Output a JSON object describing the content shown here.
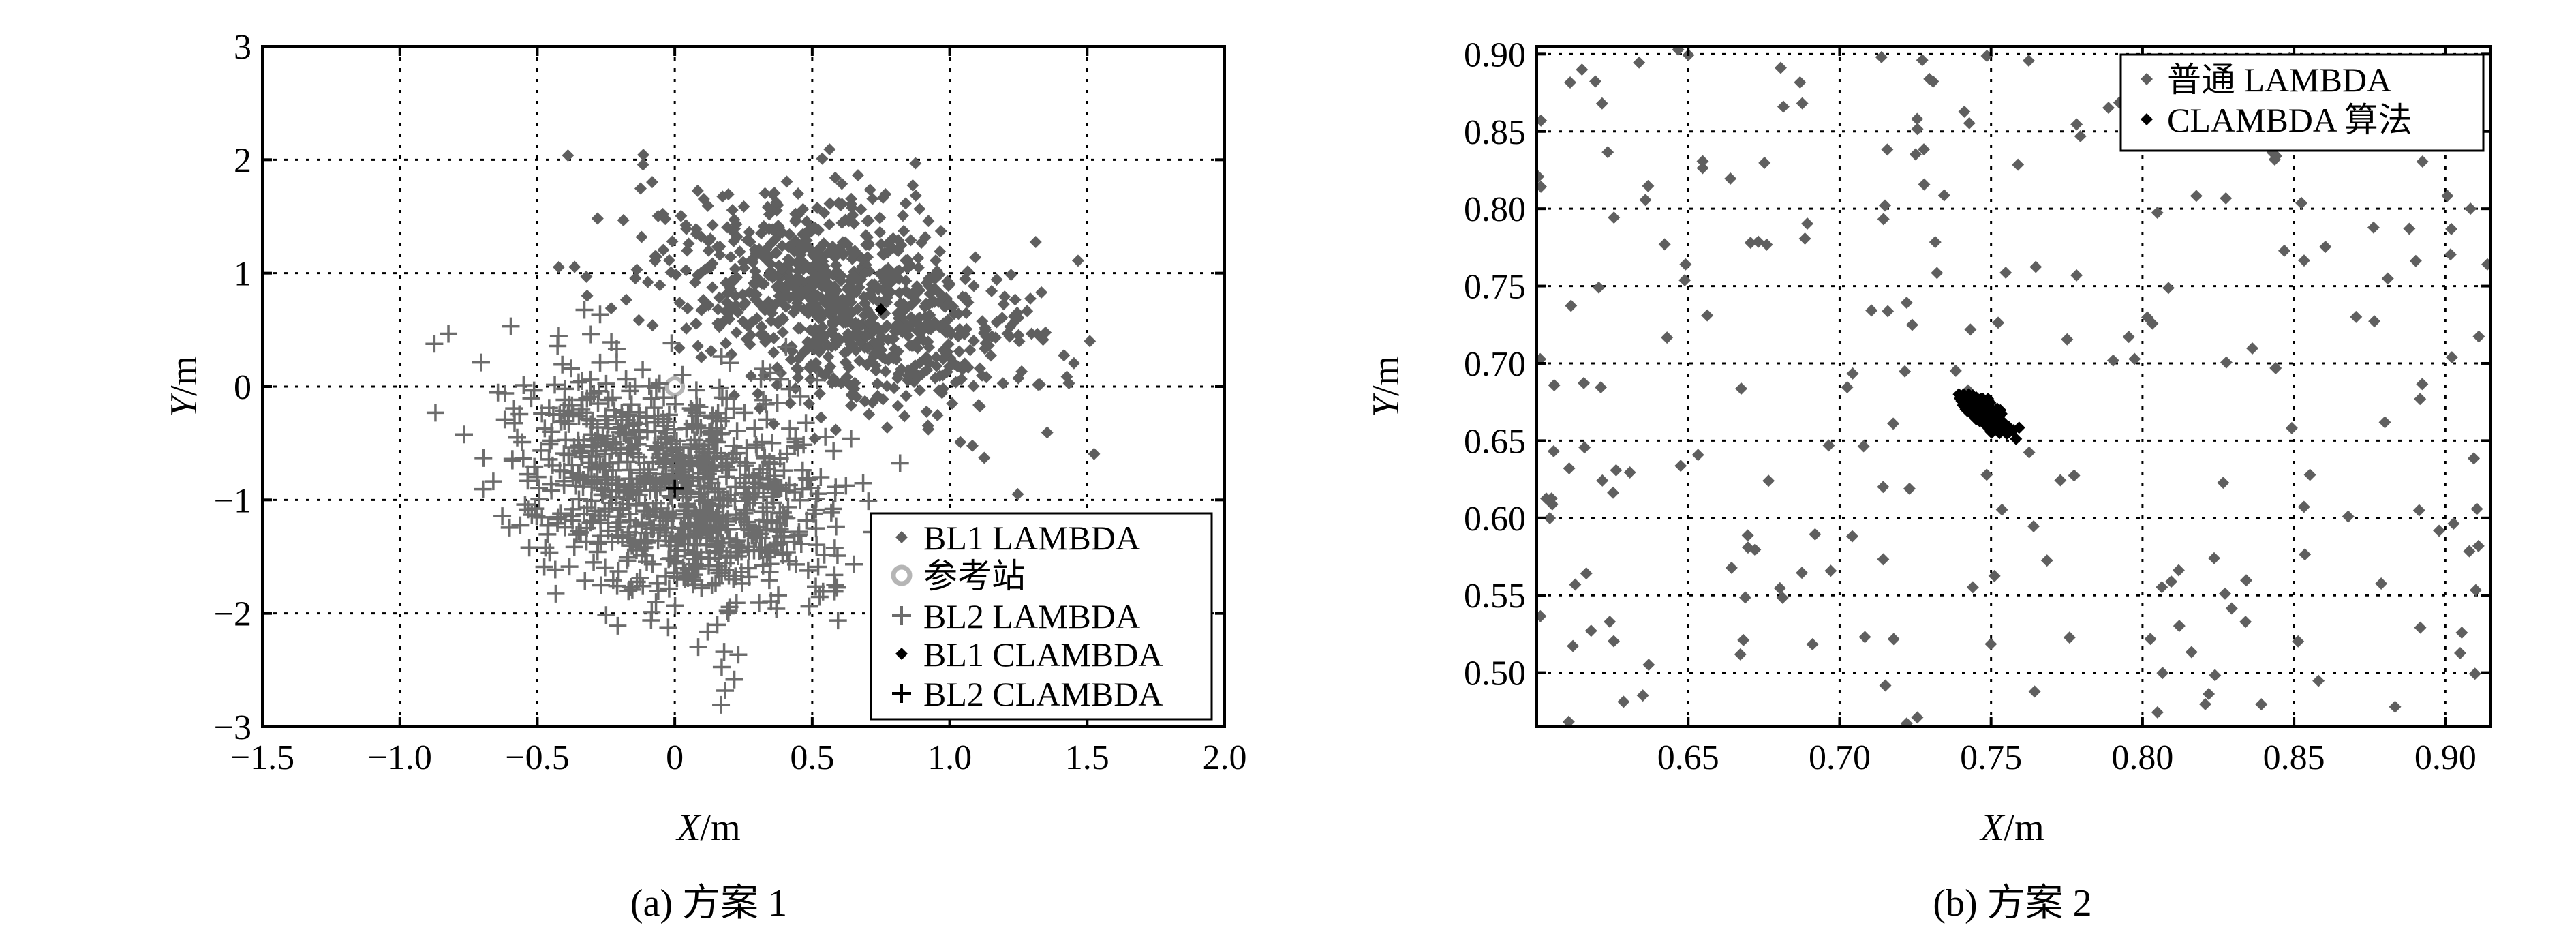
{
  "chart_data": [
    {
      "type": "scatter",
      "caption": "(a) 方案 1",
      "xlabel_var": "X",
      "xlabel_unit": "/m",
      "ylabel_var": "Y",
      "ylabel_unit": "/m",
      "xlim": [
        -1.5,
        2.0
      ],
      "ylim": [
        -3,
        3
      ],
      "xticks": [
        -1.5,
        -1.0,
        -0.5,
        0,
        0.5,
        1.0,
        1.5,
        2.0
      ],
      "xtick_labels": [
        "−1.5",
        "−1.0",
        "−0.5",
        "0",
        "0.5",
        "1.0",
        "1.5",
        "2.0"
      ],
      "yticks": [
        -3,
        -2,
        -1,
        0,
        1,
        2,
        3
      ],
      "ytick_labels": [
        "−3",
        "−2",
        "−1",
        "0",
        "1",
        "2",
        "3"
      ],
      "grid": true,
      "legend_position": "bottom-right",
      "series": [
        {
          "name": "BL1 LAMBDA",
          "marker": "diamond",
          "color": "#5f5f5f",
          "cloud": {
            "center": [
              0.6,
              0.75
            ],
            "sd": [
              0.32,
              0.48
            ],
            "corr": -0.35,
            "n": 900
          }
        },
        {
          "name": "参考站",
          "marker": "circle",
          "color": "#b5b5b5",
          "points": [
            [
              0,
              0
            ]
          ]
        },
        {
          "name": "BL2 LAMBDA",
          "marker": "plus",
          "color": "#6c6c6c",
          "cloud": {
            "center": [
              0.0,
              -0.9
            ],
            "sd": [
              0.3,
              0.55
            ],
            "corr": -0.35,
            "n": 900
          }
        },
        {
          "name": "BL1 CLAMBDA",
          "marker": "diamond",
          "color": "#000000",
          "points": [
            [
              0.75,
              0.68
            ]
          ]
        },
        {
          "name": "BL2 CLAMBDA",
          "marker": "plus",
          "color": "#000000",
          "points": [
            [
              0.0,
              -0.9
            ]
          ]
        }
      ]
    },
    {
      "type": "scatter",
      "caption": "(b) 方案 2",
      "xlabel_var": "X",
      "xlabel_unit": "/m",
      "ylabel_var": "Y",
      "ylabel_unit": "/m",
      "xlim": [
        0.6,
        0.915
      ],
      "ylim": [
        0.465,
        0.905
      ],
      "xticks": [
        0.65,
        0.7,
        0.75,
        0.8,
        0.85,
        0.9
      ],
      "xtick_labels": [
        "0.65",
        "0.70",
        "0.75",
        "0.80",
        "0.85",
        "0.90"
      ],
      "yticks": [
        0.5,
        0.55,
        0.6,
        0.65,
        0.7,
        0.75,
        0.8,
        0.85,
        0.9
      ],
      "ytick_labels": [
        "0.50",
        "0.55",
        "0.60",
        "0.65",
        "0.70",
        "0.75",
        "0.80",
        "0.85",
        "0.90"
      ],
      "grid": true,
      "legend_position": "top-right",
      "series": [
        {
          "name": "普通 LAMBDA",
          "marker": "diamond",
          "color": "#5f5f5f",
          "cloud": {
            "uniform": true,
            "n": 230
          }
        },
        {
          "name": "CLAMBDA 算法",
          "marker": "diamond",
          "color": "#000000",
          "cloud": {
            "center": [
              0.7475,
              0.668
            ],
            "sd": [
              0.0035,
              0.0055
            ],
            "corr": -0.8,
            "n": 420
          }
        }
      ]
    }
  ]
}
